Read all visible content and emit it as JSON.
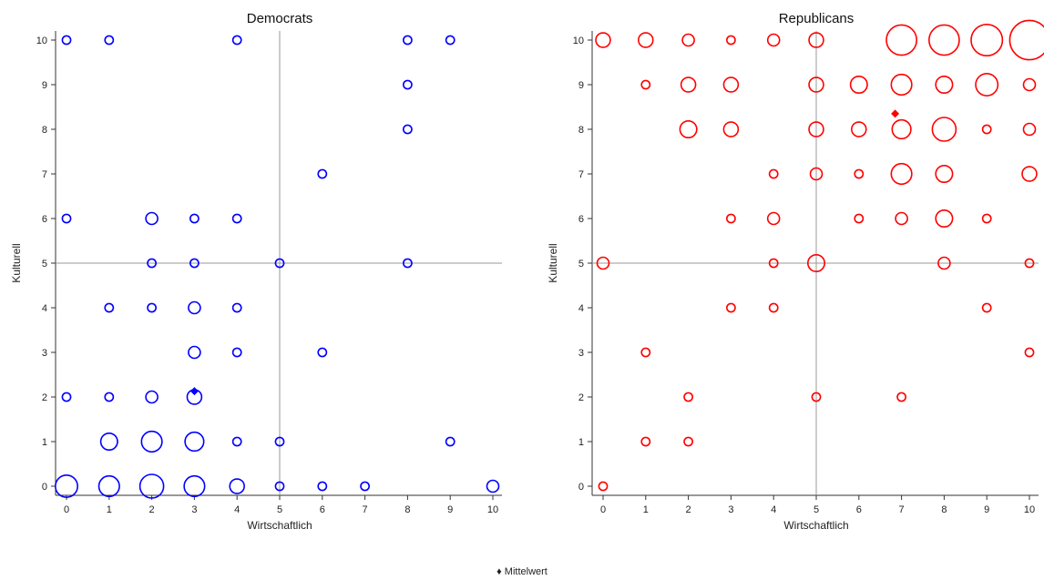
{
  "legend_label": "♦ Mittelwert",
  "chart_data": [
    {
      "type": "scatter",
      "title": "Democrats",
      "xlabel": "Wirtschaftlich",
      "ylabel": "Kulturell",
      "xlim": [
        0,
        10
      ],
      "ylim": [
        0,
        10
      ],
      "ticks": [
        0,
        1,
        2,
        3,
        4,
        5,
        6,
        7,
        8,
        9,
        10
      ],
      "reference_lines": {
        "x": 5,
        "y": 5
      },
      "color": "#0000ff",
      "mean": {
        "x": 3.0,
        "y": 2.13
      },
      "points": [
        {
          "x": 0,
          "y": 10,
          "n": 1
        },
        {
          "x": 1,
          "y": 10,
          "n": 1
        },
        {
          "x": 4,
          "y": 10,
          "n": 1
        },
        {
          "x": 8,
          "y": 10,
          "n": 1
        },
        {
          "x": 9,
          "y": 10,
          "n": 1
        },
        {
          "x": 8,
          "y": 9,
          "n": 1
        },
        {
          "x": 8,
          "y": 8,
          "n": 1
        },
        {
          "x": 6,
          "y": 7,
          "n": 1
        },
        {
          "x": 0,
          "y": 6,
          "n": 1
        },
        {
          "x": 2,
          "y": 6,
          "n": 2
        },
        {
          "x": 3,
          "y": 6,
          "n": 1
        },
        {
          "x": 4,
          "y": 6,
          "n": 1
        },
        {
          "x": 2,
          "y": 5,
          "n": 1
        },
        {
          "x": 3,
          "y": 5,
          "n": 1
        },
        {
          "x": 5,
          "y": 5,
          "n": 1
        },
        {
          "x": 8,
          "y": 5,
          "n": 1
        },
        {
          "x": 1,
          "y": 4,
          "n": 1
        },
        {
          "x": 2,
          "y": 4,
          "n": 1
        },
        {
          "x": 3,
          "y": 4,
          "n": 2
        },
        {
          "x": 4,
          "y": 4,
          "n": 1
        },
        {
          "x": 3,
          "y": 3,
          "n": 2
        },
        {
          "x": 4,
          "y": 3,
          "n": 1
        },
        {
          "x": 6,
          "y": 3,
          "n": 1
        },
        {
          "x": 0,
          "y": 2,
          "n": 1
        },
        {
          "x": 1,
          "y": 2,
          "n": 1
        },
        {
          "x": 2,
          "y": 2,
          "n": 2
        },
        {
          "x": 3,
          "y": 2,
          "n": 3
        },
        {
          "x": 1,
          "y": 1,
          "n": 4
        },
        {
          "x": 2,
          "y": 1,
          "n": 6
        },
        {
          "x": 3,
          "y": 1,
          "n": 5
        },
        {
          "x": 4,
          "y": 1,
          "n": 1
        },
        {
          "x": 5,
          "y": 1,
          "n": 1
        },
        {
          "x": 9,
          "y": 1,
          "n": 1
        },
        {
          "x": 0,
          "y": 0,
          "n": 7
        },
        {
          "x": 1,
          "y": 0,
          "n": 6
        },
        {
          "x": 2,
          "y": 0,
          "n": 8
        },
        {
          "x": 3,
          "y": 0,
          "n": 6
        },
        {
          "x": 4,
          "y": 0,
          "n": 3
        },
        {
          "x": 5,
          "y": 0,
          "n": 1
        },
        {
          "x": 6,
          "y": 0,
          "n": 1
        },
        {
          "x": 7,
          "y": 0,
          "n": 1
        },
        {
          "x": 10,
          "y": 0,
          "n": 2
        }
      ]
    },
    {
      "type": "scatter",
      "title": "Republicans",
      "xlabel": "Wirtschaftlich",
      "ylabel": "Kulturell",
      "xlim": [
        0,
        10
      ],
      "ylim": [
        0,
        10
      ],
      "ticks": [
        0,
        1,
        2,
        3,
        4,
        5,
        6,
        7,
        8,
        9,
        10
      ],
      "reference_lines": {
        "x": 5,
        "y": 5
      },
      "color": "#ff0000",
      "mean": {
        "x": 6.85,
        "y": 8.35
      },
      "points": [
        {
          "x": 0,
          "y": 10,
          "n": 3
        },
        {
          "x": 1,
          "y": 10,
          "n": 3
        },
        {
          "x": 2,
          "y": 10,
          "n": 2
        },
        {
          "x": 3,
          "y": 10,
          "n": 1
        },
        {
          "x": 4,
          "y": 10,
          "n": 2
        },
        {
          "x": 5,
          "y": 10,
          "n": 3
        },
        {
          "x": 7,
          "y": 10,
          "n": 13
        },
        {
          "x": 8,
          "y": 10,
          "n": 13
        },
        {
          "x": 9,
          "y": 10,
          "n": 14
        },
        {
          "x": 10,
          "y": 10,
          "n": 22
        },
        {
          "x": 1,
          "y": 9,
          "n": 1
        },
        {
          "x": 2,
          "y": 9,
          "n": 3
        },
        {
          "x": 3,
          "y": 9,
          "n": 3
        },
        {
          "x": 5,
          "y": 9,
          "n": 3
        },
        {
          "x": 6,
          "y": 9,
          "n": 4
        },
        {
          "x": 7,
          "y": 9,
          "n": 6
        },
        {
          "x": 8,
          "y": 9,
          "n": 4
        },
        {
          "x": 9,
          "y": 9,
          "n": 7
        },
        {
          "x": 10,
          "y": 9,
          "n": 2
        },
        {
          "x": 2,
          "y": 8,
          "n": 4
        },
        {
          "x": 3,
          "y": 8,
          "n": 3
        },
        {
          "x": 5,
          "y": 8,
          "n": 3
        },
        {
          "x": 6,
          "y": 8,
          "n": 3
        },
        {
          "x": 7,
          "y": 8,
          "n": 5
        },
        {
          "x": 8,
          "y": 8,
          "n": 8
        },
        {
          "x": 9,
          "y": 8,
          "n": 1
        },
        {
          "x": 10,
          "y": 8,
          "n": 2
        },
        {
          "x": 4,
          "y": 7,
          "n": 1
        },
        {
          "x": 5,
          "y": 7,
          "n": 2
        },
        {
          "x": 6,
          "y": 7,
          "n": 1
        },
        {
          "x": 7,
          "y": 7,
          "n": 6
        },
        {
          "x": 8,
          "y": 7,
          "n": 4
        },
        {
          "x": 10,
          "y": 7,
          "n": 3
        },
        {
          "x": 3,
          "y": 6,
          "n": 1
        },
        {
          "x": 4,
          "y": 6,
          "n": 2
        },
        {
          "x": 6,
          "y": 6,
          "n": 1
        },
        {
          "x": 7,
          "y": 6,
          "n": 2
        },
        {
          "x": 8,
          "y": 6,
          "n": 4
        },
        {
          "x": 9,
          "y": 6,
          "n": 1
        },
        {
          "x": 0,
          "y": 5,
          "n": 2
        },
        {
          "x": 4,
          "y": 5,
          "n": 1
        },
        {
          "x": 5,
          "y": 5,
          "n": 4
        },
        {
          "x": 8,
          "y": 5,
          "n": 2
        },
        {
          "x": 10,
          "y": 5,
          "n": 1
        },
        {
          "x": 3,
          "y": 4,
          "n": 1
        },
        {
          "x": 4,
          "y": 4,
          "n": 1
        },
        {
          "x": 9,
          "y": 4,
          "n": 1
        },
        {
          "x": 1,
          "y": 3,
          "n": 1
        },
        {
          "x": 10,
          "y": 3,
          "n": 1
        },
        {
          "x": 2,
          "y": 2,
          "n": 1
        },
        {
          "x": 5,
          "y": 2,
          "n": 1
        },
        {
          "x": 7,
          "y": 2,
          "n": 1
        },
        {
          "x": 1,
          "y": 1,
          "n": 1
        },
        {
          "x": 2,
          "y": 1,
          "n": 1
        },
        {
          "x": 0,
          "y": 0,
          "n": 1
        }
      ]
    }
  ]
}
